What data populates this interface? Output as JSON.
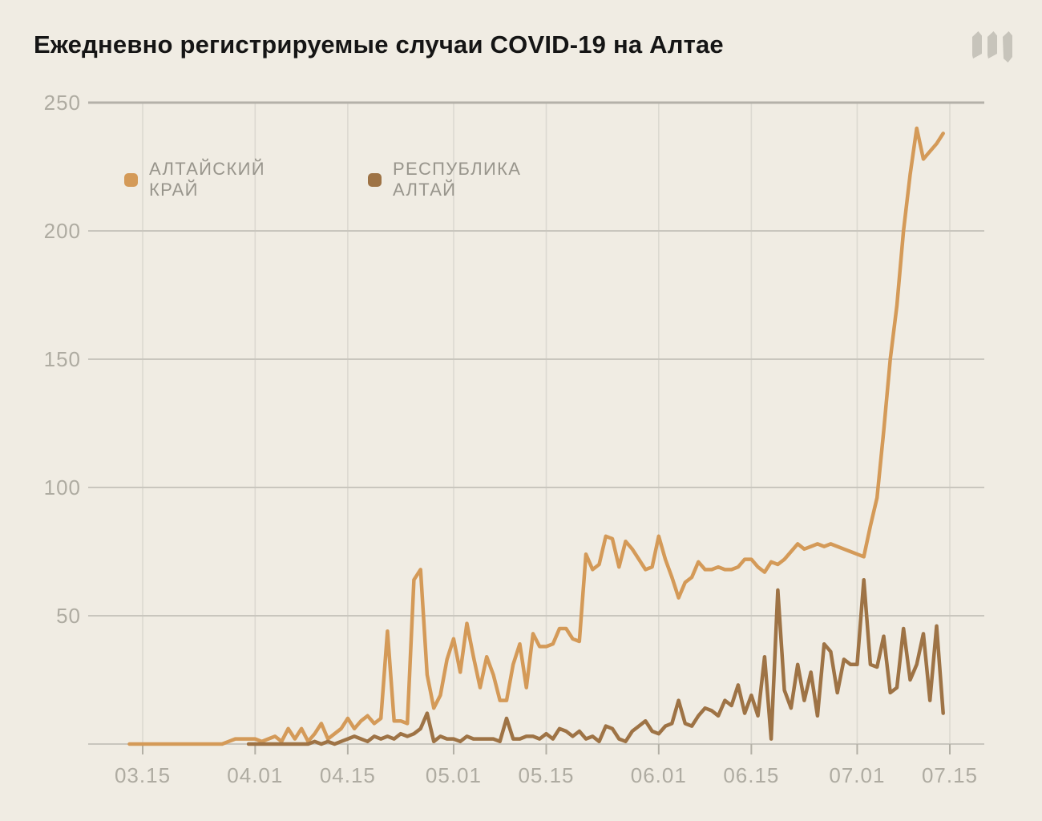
{
  "chart_data": {
    "type": "line",
    "title": "Ежедневно регистрируемые случаи COVID-19 на Алтае",
    "logo_icon": "meduza-m-logo",
    "legend_position": "top-left-inside",
    "grid": true,
    "x_ticks": [
      {
        "label": "03.15",
        "day": 2
      },
      {
        "label": "04.01",
        "day": 19
      },
      {
        "label": "04.15",
        "day": 33
      },
      {
        "label": "05.01",
        "day": 49
      },
      {
        "label": "05.15",
        "day": 63
      },
      {
        "label": "06.01",
        "day": 80
      },
      {
        "label": "06.15",
        "day": 94
      },
      {
        "label": "07.01",
        "day": 110
      },
      {
        "label": "07.15",
        "day": 124
      }
    ],
    "y_ticks": [
      {
        "label": "50",
        "value": 50
      },
      {
        "label": "100",
        "value": 100
      },
      {
        "label": "150",
        "value": 150
      },
      {
        "label": "200",
        "value": 200
      },
      {
        "label": "250",
        "value": 250
      }
    ],
    "ylim": [
      0,
      250
    ],
    "x_range_dates": [
      "03.13",
      "07.15"
    ],
    "series": [
      {
        "name": "АЛТАЙСКИЙ КРАЙ",
        "color": "#d49a58",
        "start_date": "03.13",
        "start_day": 0,
        "values": [
          0,
          0,
          0,
          0,
          0,
          0,
          0,
          0,
          0,
          0,
          0,
          0,
          0,
          0,
          0,
          1,
          2,
          2,
          2,
          2,
          1,
          2,
          3,
          1,
          6,
          2,
          6,
          1,
          4,
          8,
          2,
          4,
          6,
          10,
          6,
          9,
          11,
          8,
          10,
          44,
          9,
          9,
          8,
          64,
          68,
          27,
          14,
          19,
          33,
          41,
          28,
          47,
          34,
          22,
          34,
          27,
          17,
          17,
          31,
          39,
          22,
          43,
          38,
          38,
          39,
          45,
          45,
          41,
          40,
          74,
          68,
          70,
          81,
          80,
          69,
          79,
          76,
          72,
          68,
          69,
          81,
          72,
          65,
          57,
          63,
          65,
          71,
          68,
          68,
          69,
          68,
          68,
          69,
          72,
          72,
          69,
          67,
          71,
          70,
          72,
          75,
          78,
          76,
          77,
          78,
          77,
          78,
          77,
          76,
          75,
          74,
          73,
          85,
          96,
          122,
          150,
          171,
          200,
          222,
          240,
          228,
          231,
          234,
          238
        ]
      },
      {
        "name": "РЕСПУБЛИКА АЛТАЙ",
        "color": "#9e7345",
        "start_date": "03.31",
        "start_day": 18,
        "values": [
          0,
          0,
          0,
          0,
          0,
          0,
          0,
          0,
          0,
          0,
          1,
          0,
          1,
          0,
          1,
          2,
          3,
          2,
          1,
          3,
          2,
          3,
          2,
          4,
          3,
          4,
          6,
          12,
          1,
          3,
          2,
          2,
          1,
          3,
          2,
          2,
          2,
          2,
          1,
          10,
          2,
          2,
          3,
          3,
          2,
          4,
          2,
          6,
          5,
          3,
          5,
          2,
          3,
          1,
          7,
          6,
          2,
          1,
          5,
          7,
          9,
          5,
          4,
          7,
          8,
          17,
          8,
          7,
          11,
          14,
          13,
          11,
          17,
          15,
          23,
          12,
          19,
          11,
          34,
          2,
          60,
          21,
          14,
          31,
          17,
          28,
          11,
          39,
          36,
          20,
          33,
          31,
          31,
          64,
          31,
          30,
          42,
          20,
          22,
          45,
          25,
          31,
          43,
          17,
          46,
          12
        ]
      }
    ],
    "colors": {
      "background": "#f0ece3",
      "grid_vertical": "#dcd9d1",
      "grid_horizontal": "#c9c6be",
      "axis_top_line": "#b4b1a9",
      "tick": "#b3b0a6",
      "tick_label": "#aeaba1",
      "legend_text": "#98958c",
      "title_text": "#151515",
      "logo": "#c7c4bb"
    }
  }
}
